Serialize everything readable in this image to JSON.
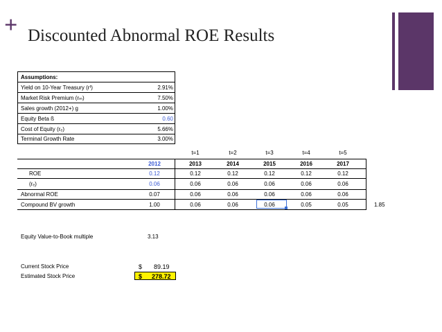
{
  "slide": {
    "plus": "+",
    "title": "Discounted Abnormal ROE Results",
    "accent_color": "#5b3668"
  },
  "assumptions": {
    "header": "Assumptions:",
    "rows": [
      {
        "label": "Yield on 10-Year Treasury (rᶠ)",
        "value": "2.91%"
      },
      {
        "label": "Market Risk Premium (rₘ)",
        "value": "7.50%"
      },
      {
        "label": "Sales growth (2012+) ɡ",
        "value": "1.00%"
      },
      {
        "label": "Equity Beta ß",
        "value": "0.60"
      },
      {
        "label": "Cost of Equity (rₑ)",
        "value": "5.66%"
      },
      {
        "label": "Terminal Growth Rate",
        "value": "3.00%"
      }
    ]
  },
  "table": {
    "periods": [
      "t=1",
      "t=2",
      "t=3",
      "t=4",
      "t=5"
    ],
    "years": [
      "2012",
      "2013",
      "2014",
      "2015",
      "2016",
      "2017"
    ],
    "rows": [
      {
        "label": "ROE",
        "values": [
          "0.12",
          "0.12",
          "0.12",
          "0.12",
          "0.12",
          "0.12"
        ]
      },
      {
        "label": "(rₑ)",
        "values": [
          "0.06",
          "0.06",
          "0.06",
          "0.06",
          "0.06",
          "0.06"
        ]
      },
      {
        "label": "Abnormal ROE",
        "values": [
          "0.07",
          "0.06",
          "0.06",
          "0.06",
          "0.06",
          "0.06"
        ]
      },
      {
        "label": "Compound BV growth",
        "values": [
          "1.00",
          "0.06",
          "0.06",
          "0.06",
          "0.05",
          "0.05"
        ],
        "extra": "1.85"
      }
    ]
  },
  "equity_multiple": {
    "label": "Equity Value-to-Book multiple",
    "value": "3.13"
  },
  "prices": {
    "current_label": "Current Stock Price",
    "current_currency": "$",
    "current_value": "89.19",
    "estimated_label": "Estimated Stock Price",
    "estimated_currency": "$",
    "estimated_value": "278.72"
  }
}
